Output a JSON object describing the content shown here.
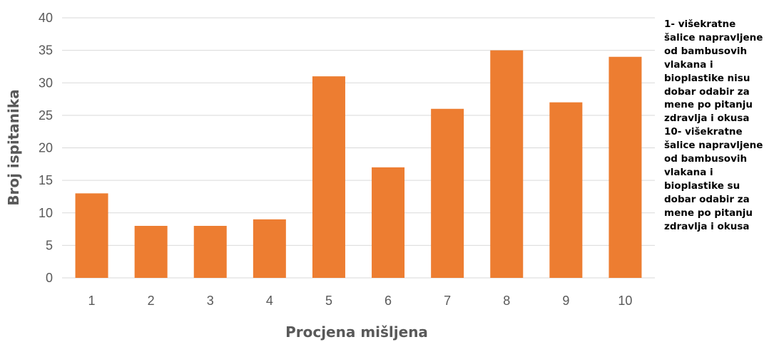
{
  "chart_data": {
    "type": "bar",
    "categories": [
      "1",
      "2",
      "3",
      "4",
      "5",
      "6",
      "7",
      "8",
      "9",
      "10"
    ],
    "values": [
      13,
      8,
      8,
      9,
      31,
      17,
      26,
      35,
      27,
      34
    ],
    "xlabel": "Procjena mišljena",
    "ylabel": "Broj ispitanika",
    "ylim": [
      0,
      40
    ],
    "yticks": [
      0,
      5,
      10,
      15,
      20,
      25,
      30,
      35,
      40
    ],
    "grid": true,
    "bar_color": "#ED7D31",
    "grid_color": "#D9D9D9",
    "text_color": "#595959"
  },
  "annotation": {
    "lines": [
      "1- višekratne",
      "šalice napravljene",
      "od bambusovih",
      "vlakana i",
      "bioplastike nisu",
      "dobar odabir za",
      "mene po pitanju",
      "zdravlja i okusa",
      "10- višekratne",
      "šalice napravljene",
      "od bambusovih",
      "vlakana i",
      "bioplastike su",
      "dobar odabir za",
      "mene po pitanju",
      "zdravlja i okusa"
    ]
  }
}
